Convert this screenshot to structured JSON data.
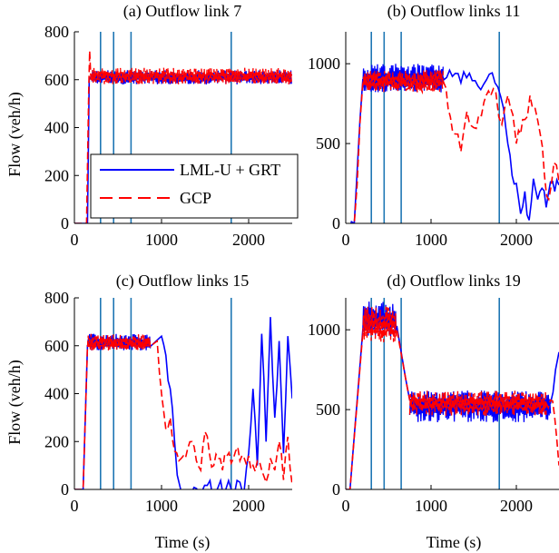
{
  "colors": {
    "blue": "#0000ff",
    "red": "#ff0000",
    "vline": "#1f77b4",
    "axis": "#000000"
  },
  "legend": {
    "items": [
      {
        "label": "LML-U + GRT",
        "color": "#0000ff",
        "dash": "solid"
      },
      {
        "label": "GCP",
        "color": "#ff0000",
        "dash": "dashed"
      }
    ]
  },
  "chart_data": [
    {
      "type": "line",
      "title": "(a) Outflow link 7",
      "xlabel": "",
      "ylabel": "Flow (veh/h)",
      "xlim": [
        0,
        2500
      ],
      "ylim": [
        0,
        800
      ],
      "xticks": [
        0,
        1000,
        2000
      ],
      "yticks": [
        0,
        200,
        400,
        600,
        800
      ],
      "vlines": [
        300,
        450,
        650,
        1800
      ],
      "series": [
        {
          "name": "LML-U + GRT",
          "x": [
            0,
            150,
            170,
            200,
            2500
          ],
          "y": [
            0,
            0,
            600,
            620,
            620
          ],
          "band": [
            [
              200,
              2500,
              580,
              640
            ]
          ]
        },
        {
          "name": "GCP",
          "x": [
            0,
            140,
            165,
            175,
            190,
            200,
            2500
          ],
          "y": [
            0,
            0,
            560,
            720,
            600,
            620,
            620
          ],
          "band": [
            [
              200,
              2500,
              580,
              650
            ]
          ]
        }
      ]
    },
    {
      "type": "line",
      "title": "(b) Outflow links 11",
      "xlabel": "",
      "ylabel": "",
      "xlim": [
        0,
        2500
      ],
      "ylim": [
        0,
        1200
      ],
      "xticks": [
        0,
        1000,
        2000
      ],
      "yticks": [
        0,
        500,
        1000
      ],
      "vlines": [
        300,
        450,
        650,
        1800
      ],
      "series": [
        {
          "name": "LML-U + GRT",
          "x": [
            0,
            100,
            200,
            1150,
            1250,
            1350,
            1450,
            1550,
            1650,
            1750,
            1850,
            1900,
            1950,
            2000,
            2050,
            2100,
            2150,
            2200,
            2250,
            2300,
            2350,
            2400,
            2450,
            2500
          ],
          "y": [
            0,
            0,
            900,
            900,
            920,
            880,
            940,
            860,
            900,
            880,
            720,
            500,
            300,
            250,
            60,
            200,
            20,
            280,
            150,
            220,
            100,
            260,
            200,
            240
          ],
          "band": [
            [
              200,
              1150,
              820,
              1000
            ]
          ]
        },
        {
          "name": "GCP",
          "x": [
            0,
            100,
            200,
            1150,
            1200,
            1280,
            1350,
            1420,
            1500,
            1560,
            1620,
            1700,
            1760,
            1830,
            1900,
            1960,
            2000,
            2050,
            2100,
            2160,
            2220,
            2280,
            2330,
            2380,
            2440,
            2500
          ],
          "y": [
            0,
            0,
            880,
            880,
            720,
            560,
            450,
            700,
            600,
            680,
            760,
            800,
            820,
            620,
            800,
            680,
            500,
            560,
            650,
            800,
            720,
            560,
            300,
            150,
            380,
            260
          ],
          "band": [
            [
              200,
              1150,
              820,
              960
            ]
          ]
        }
      ]
    },
    {
      "type": "line",
      "title": "(c) Outflow links 15",
      "xlabel": "Time (s)",
      "ylabel": "Flow (veh/h)",
      "xlim": [
        0,
        2500
      ],
      "ylim": [
        0,
        800
      ],
      "xticks": [
        0,
        1000,
        2000
      ],
      "yticks": [
        0,
        200,
        400,
        600,
        800
      ],
      "vlines": [
        300,
        450,
        650,
        1800
      ],
      "series": [
        {
          "name": "LML-U + GRT",
          "x": [
            0,
            100,
            150,
            880,
            1000,
            1050,
            1100,
            1150,
            1180,
            1220,
            1800,
            1900,
            1950,
            2000,
            2050,
            2100,
            2150,
            2200,
            2250,
            2300,
            2350,
            2400,
            2450,
            2500
          ],
          "y": [
            0,
            0,
            600,
            600,
            640,
            560,
            420,
            200,
            60,
            0,
            0,
            30,
            0,
            150,
            420,
            100,
            650,
            200,
            720,
            300,
            620,
            150,
            640,
            380
          ],
          "band": [
            [
              150,
              880,
              580,
              650
            ]
          ]
        },
        {
          "name": "GCP",
          "x": [
            0,
            100,
            150,
            880,
            950,
            1000,
            1050,
            1100,
            1150,
            1200,
            1250,
            1300,
            1350,
            1400,
            1450,
            1500,
            1550,
            1600,
            1650,
            1700,
            1750,
            1800,
            1850,
            1900,
            1950,
            2000,
            2050,
            2100,
            2150,
            2200,
            2250,
            2300,
            2350,
            2400,
            2450,
            2500
          ],
          "y": [
            0,
            0,
            600,
            600,
            620,
            400,
            250,
            300,
            160,
            120,
            140,
            170,
            200,
            120,
            80,
            240,
            150,
            100,
            130,
            80,
            140,
            110,
            160,
            120,
            130,
            140,
            100,
            120,
            80,
            30,
            130,
            80,
            200,
            40,
            220,
            20
          ],
          "band": [
            [
              150,
              880,
              580,
              650
            ]
          ]
        }
      ]
    },
    {
      "type": "line",
      "title": "(d) Outflow links 19",
      "xlabel": "Time (s)",
      "ylabel": "",
      "xlim": [
        0,
        2500
      ],
      "ylim": [
        0,
        1200
      ],
      "xticks": [
        0,
        1000,
        2000
      ],
      "yticks": [
        0,
        500,
        1000
      ],
      "vlines": [
        300,
        450,
        650,
        1800
      ],
      "series": [
        {
          "name": "LML-U + GRT",
          "x": [
            0,
            50,
            200,
            600,
            700,
            750,
            2400,
            2460,
            2500
          ],
          "y": [
            0,
            0,
            1000,
            1020,
            700,
            560,
            540,
            750,
            860
          ],
          "band": [
            [
              200,
              600,
              950,
              1180
            ],
            [
              750,
              2400,
              420,
              620
            ]
          ]
        },
        {
          "name": "GCP",
          "x": [
            0,
            50,
            200,
            600,
            700,
            750,
            2350,
            2400,
            2450,
            2500
          ],
          "y": [
            0,
            0,
            980,
            1000,
            700,
            560,
            540,
            560,
            450,
            150
          ],
          "band": [
            [
              200,
              600,
              920,
              1150
            ],
            [
              750,
              2350,
              460,
              620
            ]
          ]
        }
      ]
    }
  ]
}
